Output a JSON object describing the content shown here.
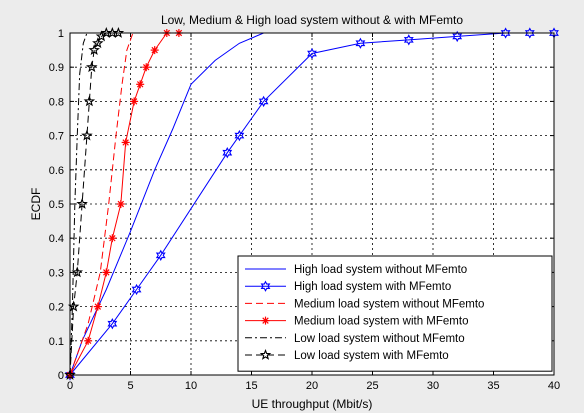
{
  "chart_data": {
    "type": "line",
    "title": "Low, Medium & High load system without & with MFemto",
    "xlabel": "UE throughput (Mbit/s)",
    "ylabel": "ECDF",
    "xlim": [
      0,
      40
    ],
    "ylim": [
      0,
      1
    ],
    "xticks": [
      "0",
      "5",
      "10",
      "15",
      "20",
      "25",
      "30",
      "35",
      "40"
    ],
    "yticks": [
      "0",
      "0.1",
      "0.2",
      "0.3",
      "0.4",
      "0.5",
      "0.6",
      "0.7",
      "0.8",
      "0.9",
      "1"
    ],
    "grid": true,
    "legend_position": "bottom-right",
    "colors": {
      "high": "#0000ff",
      "medium": "#ff0000",
      "low": "#000000"
    },
    "series": [
      {
        "name": "High load system without MFemto",
        "color": "#0000ff",
        "dash": "solid",
        "marker": "none",
        "points": [
          [
            0,
            0
          ],
          [
            1,
            0.1
          ],
          [
            3,
            0.25
          ],
          [
            5,
            0.42
          ],
          [
            7,
            0.6
          ],
          [
            8.5,
            0.72
          ],
          [
            10,
            0.85
          ],
          [
            12,
            0.92
          ],
          [
            14,
            0.97
          ],
          [
            16,
            1
          ],
          [
            40,
            1
          ]
        ]
      },
      {
        "name": "High load system with MFemto",
        "color": "#0000ff",
        "dash": "solid",
        "marker": "hexagram",
        "points": [
          [
            0,
            0
          ],
          [
            3.5,
            0.15
          ],
          [
            5.5,
            0.25
          ],
          [
            7.5,
            0.35
          ],
          [
            13,
            0.65
          ],
          [
            14,
            0.7
          ],
          [
            16,
            0.8
          ],
          [
            20,
            0.94
          ],
          [
            24,
            0.97
          ],
          [
            28,
            0.98
          ],
          [
            32,
            0.99
          ],
          [
            36,
            1
          ],
          [
            38,
            1
          ],
          [
            40,
            1
          ]
        ]
      },
      {
        "name": "Medium load system without MFemto",
        "color": "#ff0000",
        "dash": "dashed",
        "marker": "none",
        "points": [
          [
            0,
            0
          ],
          [
            1.5,
            0.15
          ],
          [
            2.5,
            0.3
          ],
          [
            3.2,
            0.5
          ],
          [
            3.8,
            0.7
          ],
          [
            4.3,
            0.85
          ],
          [
            4.7,
            0.95
          ],
          [
            5.2,
            1
          ],
          [
            5.6,
            1
          ]
        ]
      },
      {
        "name": "Medium load system with MFemto",
        "color": "#ff0000",
        "dash": "solid",
        "marker": "asterisk",
        "points": [
          [
            0,
            0
          ],
          [
            1.5,
            0.1
          ],
          [
            2.3,
            0.2
          ],
          [
            3,
            0.3
          ],
          [
            3.5,
            0.4
          ],
          [
            4.2,
            0.5
          ],
          [
            4.6,
            0.68
          ],
          [
            5.3,
            0.8
          ],
          [
            5.8,
            0.85
          ],
          [
            6.3,
            0.9
          ],
          [
            7,
            0.95
          ],
          [
            8,
            1
          ],
          [
            9,
            1
          ]
        ]
      },
      {
        "name": "Low load system without MFemto",
        "color": "#000000",
        "dash": "dashdot",
        "marker": "none",
        "points": [
          [
            0,
            0
          ],
          [
            0.2,
            0.2
          ],
          [
            0.4,
            0.5
          ],
          [
            0.6,
            0.7
          ],
          [
            0.8,
            0.88
          ],
          [
            1.1,
            0.97
          ],
          [
            1.4,
            1
          ],
          [
            1.8,
            1
          ]
        ]
      },
      {
        "name": "Low load system with MFemto",
        "color": "#000000",
        "dash": "dashed",
        "marker": "pentagram",
        "points": [
          [
            0,
            0
          ],
          [
            0.3,
            0.2
          ],
          [
            0.6,
            0.3
          ],
          [
            1,
            0.5
          ],
          [
            1.4,
            0.7
          ],
          [
            1.6,
            0.8
          ],
          [
            1.8,
            0.9
          ],
          [
            2,
            0.95
          ],
          [
            2.3,
            0.97
          ],
          [
            2.6,
            0.99
          ],
          [
            3,
            1
          ],
          [
            3.5,
            1
          ],
          [
            4,
            1
          ]
        ]
      }
    ]
  }
}
